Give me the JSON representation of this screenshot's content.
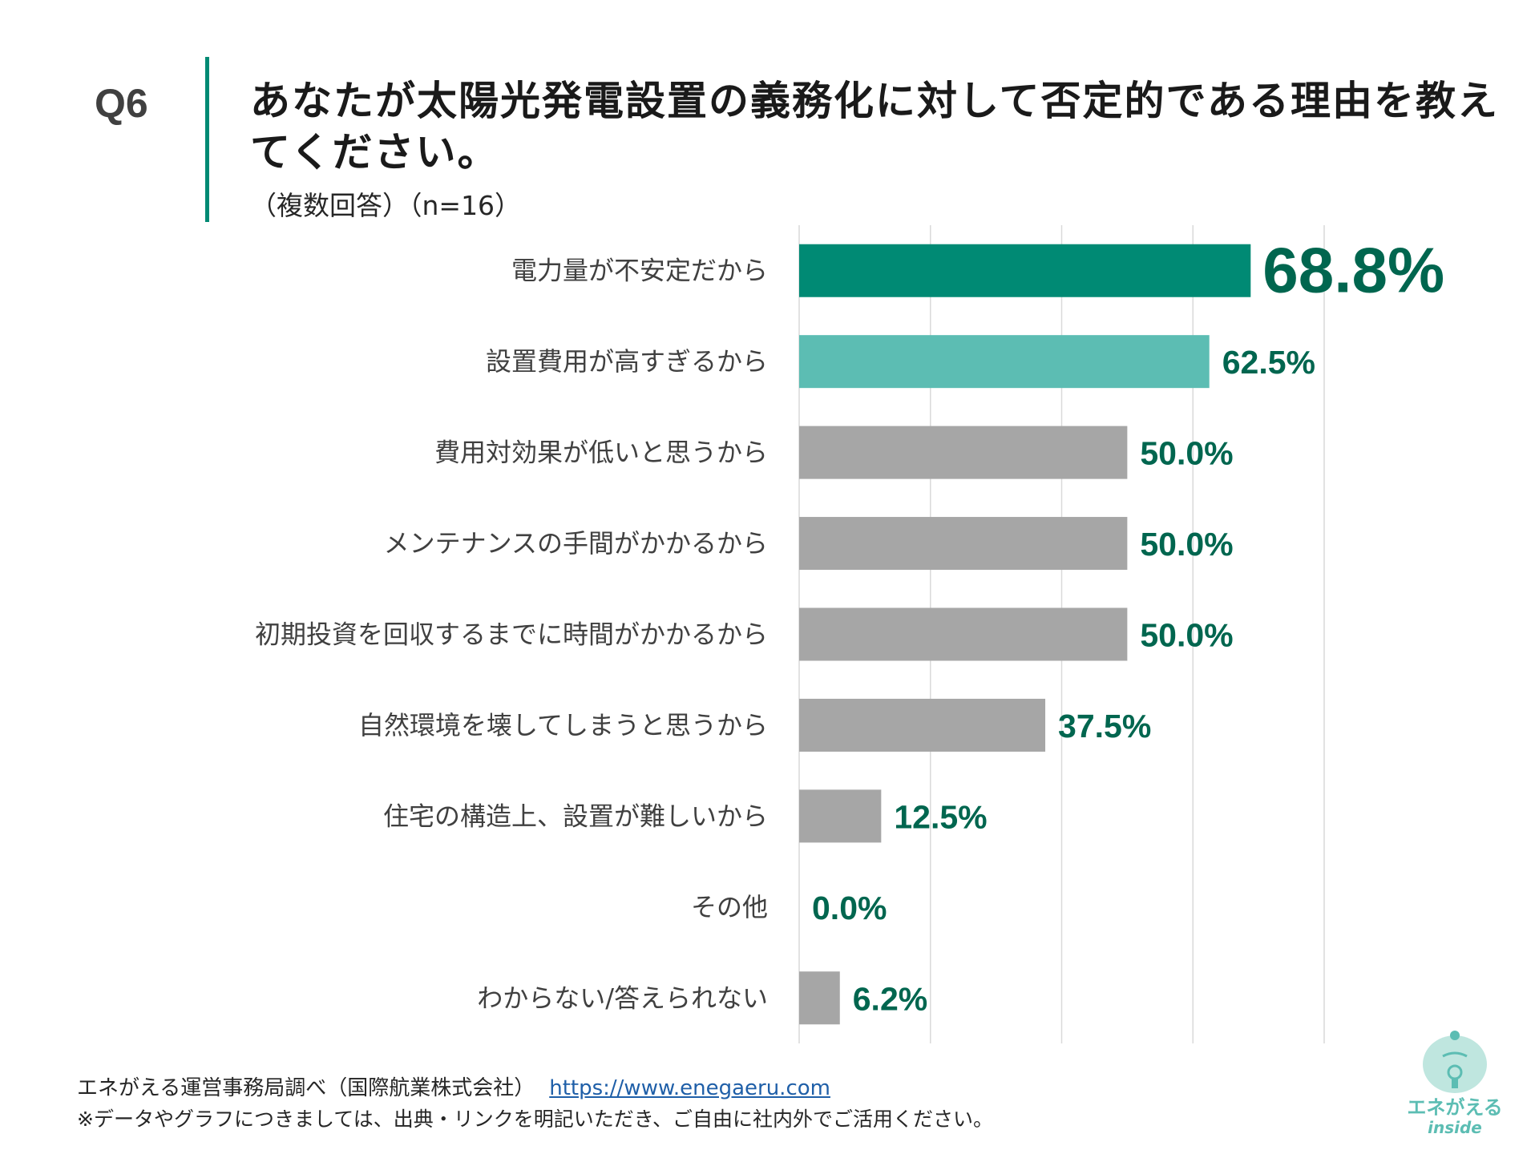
{
  "header": {
    "question_no": "Q6",
    "title": "あなたが太陽光発電設置の義務化に対して否定的である理由を教えてください。",
    "subtitle": "（複数回答）（n=16）"
  },
  "chart_data": {
    "type": "bar",
    "orientation": "horizontal",
    "categories": [
      "電力量が不安定だから",
      "設置費用が高すぎるから",
      "費用対効果が低いと思うから",
      "メンテナンスの手間がかかるから",
      "初期投資を回収するまでに時間がかかるから",
      "自然環境を壊してしまうと思うから",
      "住宅の構造上、設置が難しいから",
      "その他",
      "わからない/答えられない"
    ],
    "values": [
      68.8,
      62.5,
      50.0,
      50.0,
      50.0,
      37.5,
      12.5,
      0.0,
      6.2
    ],
    "data_labels": [
      "68.8%",
      "62.5%",
      "50.0%",
      "50.0%",
      "50.0%",
      "37.5%",
      "12.5%",
      "0.0%",
      "6.2%"
    ],
    "xlim": [
      0,
      80
    ],
    "gridlines": [
      0,
      20,
      40,
      60,
      80
    ],
    "grid": true,
    "bar_colors": [
      "#008a74",
      "#5cbdb3",
      "#a6a6a6",
      "#a6a6a6",
      "#a6a6a6",
      "#a6a6a6",
      "#a6a6a6",
      "#a6a6a6",
      "#a6a6a6"
    ],
    "label_color": "#00664f"
  },
  "footer": {
    "source": "エネがえる運営事務局調べ（国際航業株式会社）",
    "link": "https://www.enegaeru.com",
    "note": "※データやグラフにつきましては、出典・リンクを明記いただき、ご自由に社内外でご活用ください。"
  },
  "logo": {
    "name": "エネがえる",
    "sub": "inside"
  }
}
